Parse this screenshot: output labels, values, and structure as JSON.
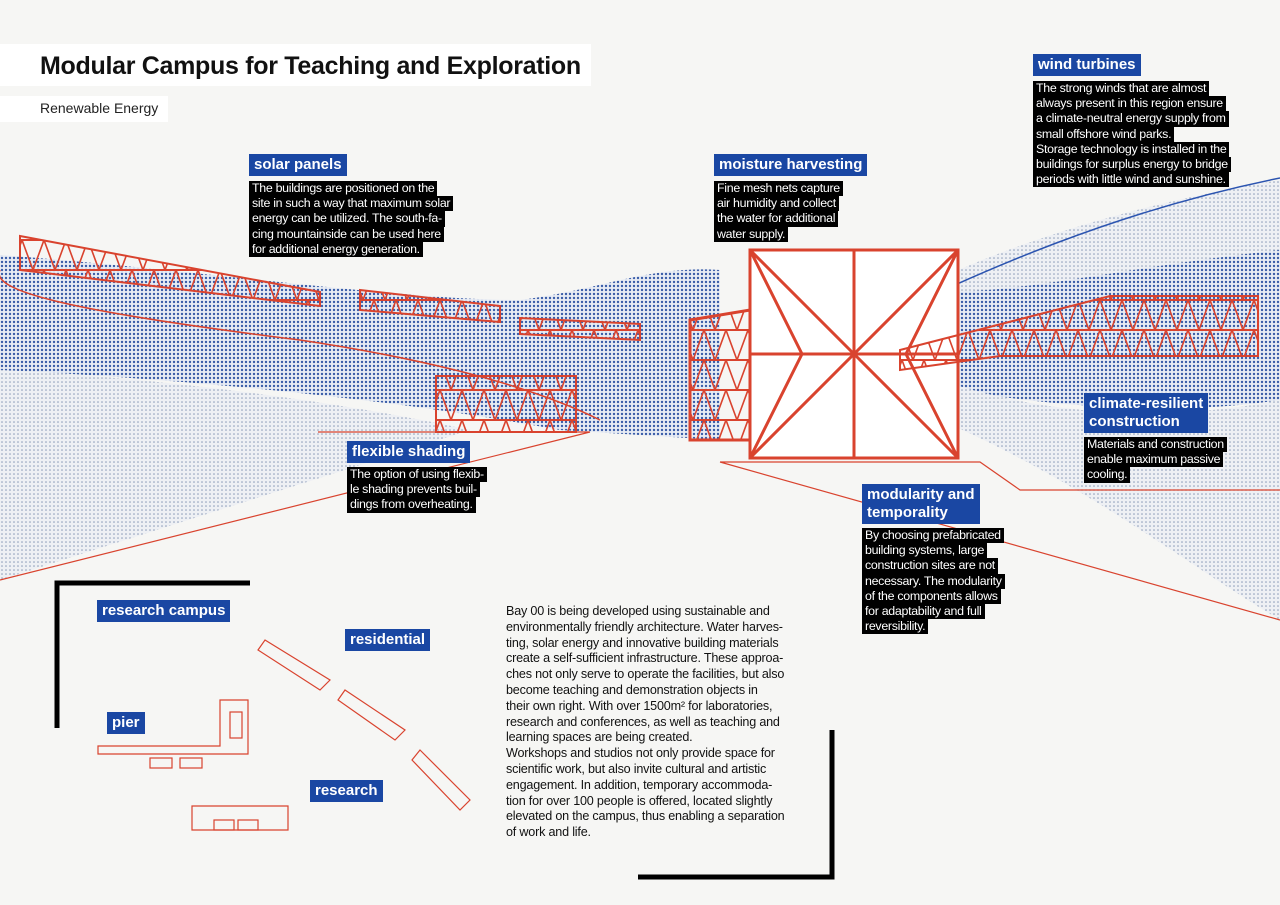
{
  "header": {
    "title": "Modular Campus for Teaching and Exploration",
    "subtitle": "Renewable Energy"
  },
  "colors": {
    "accent_blue": "#1a47a3",
    "structure_red": "#d9432e",
    "text_black": "#000000"
  },
  "callouts": {
    "solar": {
      "label": "solar panels",
      "lines": [
        "The buildings are positioned on the",
        "site in such a way that maximum solar",
        "energy can be utilized. The south-fa-",
        "cing mountainside can be used here",
        "for additional energy generation."
      ]
    },
    "moisture": {
      "label": "moisture harvesting",
      "lines": [
        "Fine mesh nets capture",
        "air humidity and collect",
        "the water for additional",
        "water supply."
      ]
    },
    "wind": {
      "label": "wind turbines",
      "lines": [
        "The strong winds that are almost",
        "always present in this region ensure",
        "a climate-neutral energy supply from",
        "small offshore wind parks.",
        "Storage technology is installed in the",
        "buildings for surplus energy to bridge",
        "periods with little wind and sunshine."
      ]
    },
    "shading": {
      "label": "flexible shading",
      "lines": [
        "The option of using flexib-",
        "le shading prevents buil-",
        "dings from overheating."
      ]
    },
    "climate": {
      "label_lines": [
        "climate-resilient",
        "construction"
      ],
      "lines": [
        "Materials and construction",
        "enable maximum passive",
        "cooling."
      ]
    },
    "modularity": {
      "label_lines": [
        "modularity and",
        "temporality"
      ],
      "lines": [
        "By choosing prefabricated",
        "building systems, large",
        "construction sites are not",
        "necessary. The modularity",
        "of the components allows",
        "for adaptability and full",
        "reversibility."
      ]
    }
  },
  "site_plan": {
    "labels": [
      "research campus",
      "residential",
      "pier",
      "research"
    ]
  },
  "description": {
    "lines": [
      "Bay 00 is being developed using sustainable and",
      "environmentally friendly architecture. Water harves-",
      "ting, solar energy and innovative building materials",
      "create a self-sufficient infrastructure. These approa-",
      "ches not only serve to operate the facilities, but also",
      "become teaching and demonstration objects in",
      "their own right. With over 1500m² for laboratories,",
      "research and conferences, as well as teaching and",
      "learning spaces are being created.",
      "Workshops and studios not only provide space for",
      "scientific work, but also invite cultural and artistic",
      "engagement. In addition, temporary accommoda-",
      "tion for over 100 people is offered, located slightly",
      "elevated on the campus, thus enabling a separation",
      "of work and life."
    ]
  }
}
